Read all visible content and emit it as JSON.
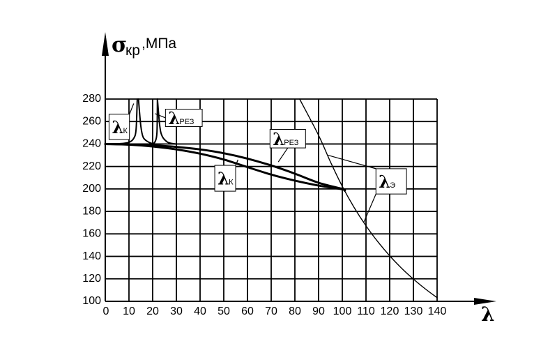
{
  "chart_data": {
    "type": "line",
    "ylabel_symbol": "σ",
    "ylabel_sub": "кр",
    "ylabel_unit": ",МПа",
    "xlabel_symbol": "λ",
    "xlim": [
      0,
      140
    ],
    "ylim": [
      100,
      280
    ],
    "x_ticks": [
      0,
      10,
      20,
      30,
      40,
      50,
      60,
      70,
      80,
      90,
      100,
      110,
      120,
      130,
      140
    ],
    "y_ticks": [
      100,
      120,
      140,
      160,
      180,
      200,
      220,
      240,
      260,
      280
    ],
    "grid": true,
    "series": [
      {
        "x": [
          82,
          90,
          95,
          100,
          105,
          110,
          115,
          120,
          125,
          130,
          135,
          140
        ],
        "y": [
          280,
          247.7,
          224.1,
          202.3,
          183.5,
          167.2,
          153,
          140.5,
          129.5,
          119.8,
          111.1,
          103.2
        ],
        "style": "thin"
      },
      {
        "x": [
          0,
          10,
          20,
          30,
          40,
          50,
          60,
          70,
          80,
          90,
          100,
          101
        ],
        "y": [
          240,
          239.6,
          238.8,
          237.4,
          235.2,
          231.8,
          227,
          220.9,
          213.6,
          205.5,
          200,
          198.5
        ],
        "style": "thick"
      },
      {
        "x": [
          0,
          10,
          20,
          30,
          40,
          50,
          60,
          70,
          80,
          90,
          100,
          101
        ],
        "y": [
          240,
          239.4,
          237.8,
          235.2,
          231.4,
          226.2,
          219.4,
          212.8,
          207.4,
          203,
          199.7,
          198.5
        ],
        "style": "thick"
      },
      {
        "x": [
          0,
          6,
          10,
          12,
          13,
          13.5
        ],
        "y": [
          240,
          240.3,
          241.5,
          245,
          253,
          280
        ],
        "style": "medium"
      },
      {
        "x": [
          14,
          15,
          16,
          18,
          20,
          21
        ],
        "y": [
          280,
          256,
          246,
          242,
          240.3,
          240
        ],
        "style": "medium"
      },
      {
        "x": [
          19,
          20,
          21,
          21.8,
          22
        ],
        "y": [
          240,
          240.3,
          242,
          250,
          280
        ],
        "style": "medium"
      },
      {
        "x": [
          22,
          23,
          24,
          26,
          28,
          30
        ],
        "y": [
          280,
          256,
          247,
          242,
          240.5,
          240
        ],
        "style": "medium"
      }
    ],
    "annotations": [
      {
        "symbol": "λ",
        "sub": "К",
        "box_x": 1.6,
        "box_y": 266.5,
        "box_w": 8.6,
        "box_h": 22.5,
        "target_x": 12,
        "target_y": 276
      },
      {
        "symbol": "λ",
        "sub": "РЕЗ",
        "box_x": 25.4,
        "box_y": 271,
        "box_w": 15.5,
        "box_h": 15.5,
        "target_x": 21,
        "target_y": 267
      },
      {
        "symbol": "λ",
        "sub": "РЕЗ",
        "box_x": 69.5,
        "box_y": 253,
        "box_w": 15,
        "box_h": 16.5,
        "target_x": 73,
        "target_y": 224
      },
      {
        "symbol": "λ",
        "sub": "К",
        "box_x": 46.2,
        "box_y": 221,
        "box_w": 8.8,
        "box_h": 23,
        "target_x": 56,
        "target_y": 226
      },
      {
        "symbol": "λ",
        "sub": "Э",
        "box_x": 114.2,
        "box_y": 218,
        "box_w": 12.9,
        "box_h": 22.5,
        "target_x": 94,
        "target_y": 230,
        "target2_x": 109,
        "target2_y": 170
      }
    ]
  }
}
